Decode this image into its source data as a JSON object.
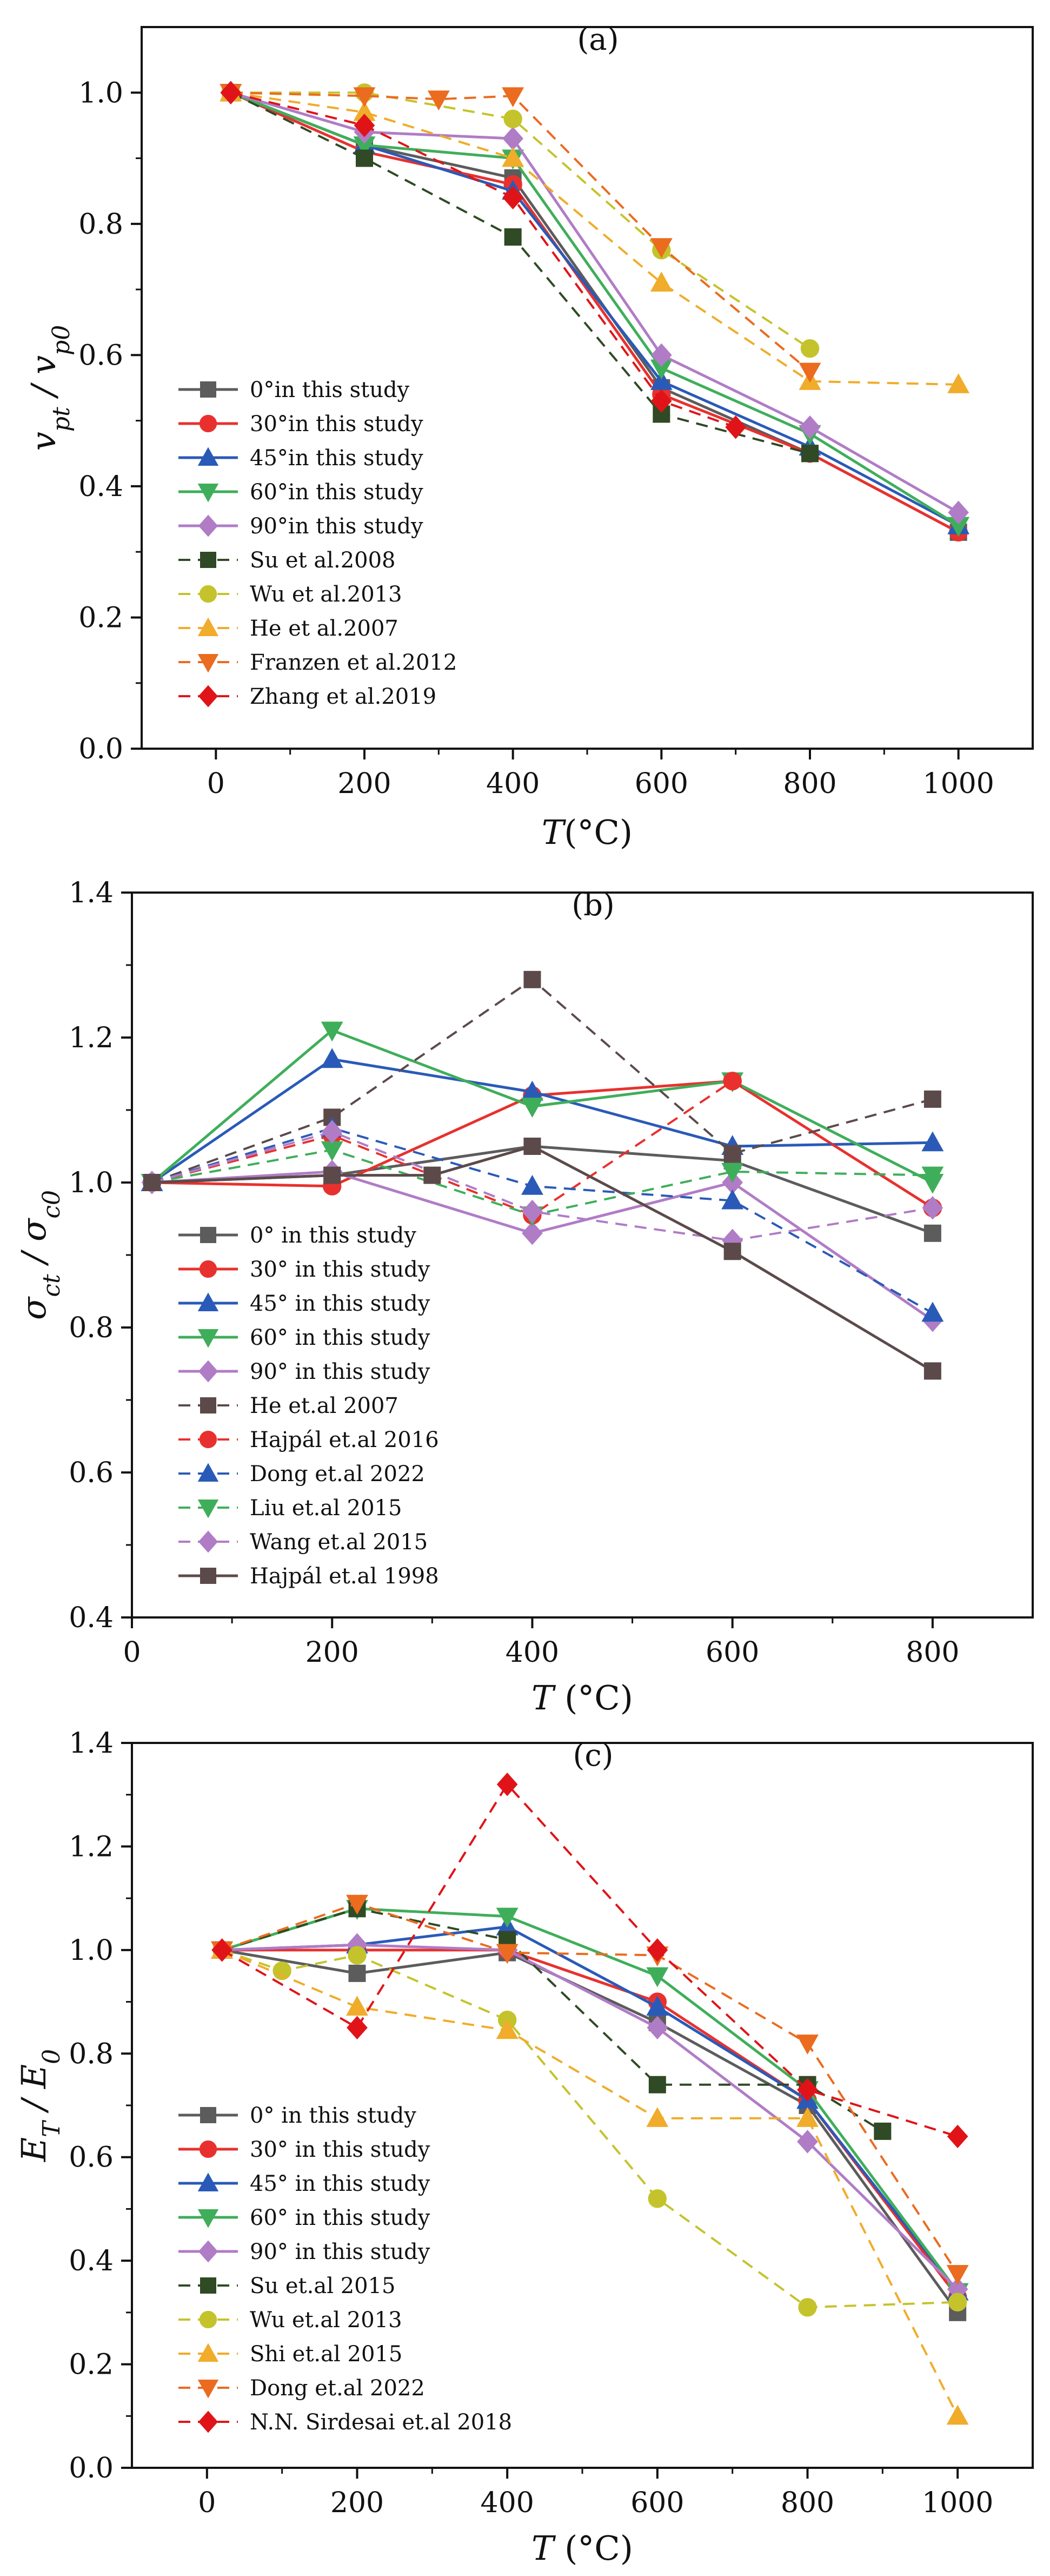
{
  "figure": {
    "panels_description": "Three stacked line charts"
  },
  "chart_data": [
    {
      "type": "line",
      "panel_label": "(a)",
      "title": "",
      "xlabel_main": "T",
      "xlabel_unit": "(°C)",
      "ylabel_main": "v",
      "ylabel_sub1": "pt",
      "ylabel_sep": " / v",
      "ylabel_sub2": "p0",
      "xlim": [
        -100,
        1100
      ],
      "ylim": [
        0.0,
        1.1
      ],
      "xticks": [
        0,
        200,
        400,
        600,
        800,
        1000
      ],
      "xtick_labels": [
        "0",
        "200",
        "400",
        "600",
        "800",
        "1000"
      ],
      "yticks": [
        0.0,
        0.2,
        0.4,
        0.6,
        0.8,
        1.0
      ],
      "ytick_labels": [
        "0.0",
        "0.2",
        "0.4",
        "0.6",
        "0.8",
        "1.0"
      ],
      "legend_position": "bottom-left",
      "series": [
        {
          "name": "0°in this study",
          "color": "#5c5c5c",
          "marker": "square",
          "dash": false,
          "x": [
            20,
            200,
            400,
            600,
            800,
            1000
          ],
          "y": [
            1.0,
            0.92,
            0.87,
            0.55,
            0.45,
            0.33
          ]
        },
        {
          "name": "30°in this study",
          "color": "#e8312e",
          "marker": "circle",
          "dash": false,
          "x": [
            20,
            200,
            400,
            600,
            800,
            1000
          ],
          "y": [
            1.0,
            0.91,
            0.86,
            0.54,
            0.45,
            0.33
          ]
        },
        {
          "name": "45°in this study",
          "color": "#2a5ab8",
          "marker": "triangle-up",
          "dash": false,
          "x": [
            20,
            200,
            400,
            600,
            800,
            1000
          ],
          "y": [
            1.0,
            0.92,
            0.85,
            0.56,
            0.46,
            0.34
          ]
        },
        {
          "name": "60°in this study",
          "color": "#3fae5a",
          "marker": "triangle-down",
          "dash": false,
          "x": [
            20,
            200,
            400,
            600,
            800,
            1000
          ],
          "y": [
            1.0,
            0.92,
            0.9,
            0.58,
            0.48,
            0.34
          ]
        },
        {
          "name": "90°in this study",
          "color": "#b07cc6",
          "marker": "diamond",
          "dash": false,
          "x": [
            20,
            200,
            400,
            600,
            800,
            1000
          ],
          "y": [
            1.0,
            0.94,
            0.93,
            0.6,
            0.49,
            0.36
          ]
        },
        {
          "name": "Su et al.2008",
          "color": "#2f4a24",
          "marker": "square",
          "dash": true,
          "x": [
            20,
            200,
            400,
            600,
            800
          ],
          "y": [
            1.0,
            0.9,
            0.78,
            0.51,
            0.45
          ]
        },
        {
          "name": "Wu et al.2013",
          "color": "#c4c32c",
          "marker": "circle",
          "dash": true,
          "x": [
            20,
            200,
            400,
            600,
            800
          ],
          "y": [
            1.0,
            1.0,
            0.96,
            0.76,
            0.61
          ]
        },
        {
          "name": "He et al.2007",
          "color": "#f0ac2a",
          "marker": "triangle-up",
          "dash": true,
          "x": [
            20,
            200,
            400,
            600,
            800,
            1000
          ],
          "y": [
            1.0,
            0.97,
            0.9,
            0.71,
            0.56,
            0.555
          ]
        },
        {
          "name": "Franzen et al.2012",
          "color": "#eb6b1f",
          "marker": "triangle-down",
          "dash": true,
          "x": [
            20,
            200,
            300,
            400,
            600,
            800
          ],
          "y": [
            1.0,
            0.995,
            0.99,
            0.995,
            0.765,
            0.575
          ]
        },
        {
          "name": "Zhang et al.2019",
          "color": "#e01418",
          "marker": "diamond",
          "dash": true,
          "x": [
            20,
            200,
            400,
            600,
            700
          ],
          "y": [
            1.0,
            0.95,
            0.84,
            0.53,
            0.49
          ]
        }
      ]
    },
    {
      "type": "line",
      "panel_label": "(b)",
      "title": "",
      "xlabel_main": "T",
      "xlabel_unit": " (°C)",
      "ylabel_main": "σ",
      "ylabel_sub1": "ct",
      "ylabel_sep": " / σ",
      "ylabel_sub2": "c0",
      "xlim": [
        0,
        900
      ],
      "ylim": [
        0.4,
        1.4
      ],
      "xticks": [
        0,
        200,
        400,
        600,
        800
      ],
      "xtick_labels": [
        "0",
        "200",
        "400",
        "600",
        "800"
      ],
      "yticks": [
        0.4,
        0.6,
        0.8,
        1.0,
        1.2,
        1.4
      ],
      "ytick_labels": [
        "0.4",
        "0.6",
        "0.8",
        "1.0",
        "1.2",
        "1.4"
      ],
      "legend_position": "bottom-left",
      "series": [
        {
          "name": "0° in this study",
          "color": "#5c5c5c",
          "marker": "square",
          "dash": false,
          "x": [
            20,
            200,
            400,
            600,
            800
          ],
          "y": [
            1.0,
            1.01,
            1.05,
            1.03,
            0.93
          ]
        },
        {
          "name": "30° in this study",
          "color": "#e8312e",
          "marker": "circle",
          "dash": false,
          "x": [
            20,
            200,
            400,
            600,
            800
          ],
          "y": [
            1.0,
            0.995,
            1.12,
            1.14,
            0.965
          ]
        },
        {
          "name": "45° in this study",
          "color": "#2a5ab8",
          "marker": "triangle-up",
          "dash": false,
          "x": [
            20,
            200,
            400,
            600,
            800
          ],
          "y": [
            1.0,
            1.17,
            1.125,
            1.05,
            1.055
          ]
        },
        {
          "name": "60° in this study",
          "color": "#3fae5a",
          "marker": "triangle-down",
          "dash": false,
          "x": [
            20,
            200,
            400,
            600,
            800
          ],
          "y": [
            1.0,
            1.21,
            1.105,
            1.14,
            1.0
          ]
        },
        {
          "name": "90° in this study",
          "color": "#b07cc6",
          "marker": "diamond",
          "dash": false,
          "x": [
            20,
            200,
            400,
            600,
            800
          ],
          "y": [
            1.0,
            1.015,
            0.93,
            1.0,
            0.81
          ]
        },
        {
          "name": "He et.al 2007",
          "color": "#5c4a4a",
          "marker": "square",
          "dash": true,
          "x": [
            20,
            200,
            400,
            600,
            800
          ],
          "y": [
            1.0,
            1.09,
            1.28,
            1.04,
            1.115
          ]
        },
        {
          "name": "Hajpál et.al 2016",
          "color": "#e8312e",
          "marker": "circle",
          "dash": true,
          "x": [
            20,
            200,
            400,
            600,
            800
          ],
          "y": [
            1.0,
            1.065,
            0.955,
            1.14,
            0.965
          ]
        },
        {
          "name": "Dong et.al 2022",
          "color": "#2a5ab8",
          "marker": "triangle-up",
          "dash": true,
          "x": [
            20,
            200,
            400,
            600,
            800
          ],
          "y": [
            1.0,
            1.075,
            0.995,
            0.975,
            0.82
          ]
        },
        {
          "name": "Liu et.al 2015",
          "color": "#3fae5a",
          "marker": "triangle-down",
          "dash": true,
          "x": [
            20,
            200,
            400,
            600,
            800
          ],
          "y": [
            1.0,
            1.045,
            0.955,
            1.015,
            1.01
          ]
        },
        {
          "name": "Wang et.al 2015",
          "color": "#b07cc6",
          "marker": "diamond",
          "dash": true,
          "x": [
            20,
            200,
            400,
            600,
            800
          ],
          "y": [
            1.0,
            1.07,
            0.96,
            0.92,
            0.965
          ]
        },
        {
          "name": "Hajpál et.al 1998",
          "color": "#5c4a4a",
          "marker": "square",
          "dash": false,
          "x": [
            20,
            200,
            300,
            400,
            600,
            800
          ],
          "y": [
            1.0,
            1.01,
            1.01,
            1.05,
            0.905,
            0.74
          ]
        }
      ]
    },
    {
      "type": "line",
      "panel_label": "(c)",
      "title": "",
      "xlabel_main": "T",
      "xlabel_unit": " (°C)",
      "ylabel_main": "E",
      "ylabel_sub1": "T",
      "ylabel_sep": " / E",
      "ylabel_sub2": "0",
      "xlim": [
        -100,
        1100
      ],
      "ylim": [
        0.0,
        1.4
      ],
      "xticks": [
        0,
        200,
        400,
        600,
        800,
        1000
      ],
      "xtick_labels": [
        "0",
        "200",
        "400",
        "600",
        "800",
        "1000"
      ],
      "yticks": [
        0.0,
        0.2,
        0.4,
        0.6,
        0.8,
        1.0,
        1.2,
        1.4
      ],
      "ytick_labels": [
        "0.0",
        "0.2",
        "0.4",
        "0.6",
        "0.8",
        "1.0",
        "1.2",
        "1.4"
      ],
      "legend_position": "bottom-left",
      "series": [
        {
          "name": "0° in this study",
          "color": "#5c5c5c",
          "marker": "square",
          "dash": false,
          "x": [
            20,
            200,
            400,
            600,
            800,
            1000
          ],
          "y": [
            1.0,
            0.955,
            0.995,
            0.86,
            0.7,
            0.3
          ]
        },
        {
          "name": "30° in this study",
          "color": "#e8312e",
          "marker": "circle",
          "dash": false,
          "x": [
            20,
            200,
            400,
            600,
            800,
            1000
          ],
          "y": [
            1.0,
            1.0,
            1.0,
            0.9,
            0.71,
            0.33
          ]
        },
        {
          "name": "45° in this study",
          "color": "#2a5ab8",
          "marker": "triangle-up",
          "dash": false,
          "x": [
            20,
            200,
            400,
            600,
            800,
            1000
          ],
          "y": [
            1.0,
            1.01,
            1.045,
            0.89,
            0.71,
            0.34
          ]
        },
        {
          "name": "60° in this study",
          "color": "#3fae5a",
          "marker": "triangle-down",
          "dash": false,
          "x": [
            20,
            200,
            400,
            600,
            800,
            1000
          ],
          "y": [
            1.0,
            1.08,
            1.065,
            0.95,
            0.73,
            0.34
          ]
        },
        {
          "name": "90° in this study",
          "color": "#b07cc6",
          "marker": "diamond",
          "dash": false,
          "x": [
            20,
            200,
            400,
            600,
            800,
            1000
          ],
          "y": [
            1.0,
            1.01,
            1.0,
            0.85,
            0.63,
            0.345
          ]
        },
        {
          "name": "Su et.al 2015",
          "color": "#2f4a24",
          "marker": "square",
          "dash": true,
          "x": [
            20,
            200,
            400,
            600,
            800,
            900
          ],
          "y": [
            1.0,
            1.08,
            1.02,
            0.74,
            0.74,
            0.65
          ]
        },
        {
          "name": "Wu et.al 2013",
          "color": "#c4c32c",
          "marker": "circle",
          "dash": true,
          "x": [
            20,
            100,
            200,
            400,
            600,
            800,
            1000
          ],
          "y": [
            1.0,
            0.96,
            0.99,
            0.865,
            0.52,
            0.31,
            0.32
          ]
        },
        {
          "name": "Shi et.al 2015",
          "color": "#f0ac2a",
          "marker": "triangle-up",
          "dash": true,
          "x": [
            20,
            200,
            400,
            600,
            800,
            1000
          ],
          "y": [
            1.0,
            0.89,
            0.845,
            0.675,
            0.675,
            0.1
          ]
        },
        {
          "name": "Dong et.al 2022",
          "color": "#eb6b1f",
          "marker": "triangle-down",
          "dash": true,
          "x": [
            20,
            200,
            400,
            600,
            800,
            1000
          ],
          "y": [
            1.0,
            1.09,
            0.995,
            0.99,
            0.82,
            0.375
          ]
        },
        {
          "name": "N.N. Sirdesai et.al 2018",
          "color": "#e01418",
          "marker": "diamond",
          "dash": true,
          "x": [
            20,
            200,
            400,
            600,
            800,
            1000
          ],
          "y": [
            1.0,
            0.85,
            1.32,
            1.0,
            0.73,
            0.64
          ]
        }
      ]
    }
  ]
}
